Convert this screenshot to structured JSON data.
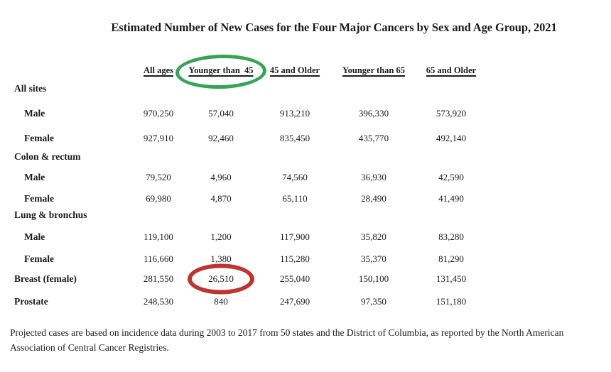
{
  "title": "Estimated Number of New Cases for the Four Major Cancers by Sex and Age Group, 2021",
  "table": {
    "columns": [
      "All ages",
      "Younger than  45",
      "45 and Older",
      "Younger than 65",
      "65 and Older"
    ],
    "rows": [
      {
        "label": "All sites",
        "type": "group",
        "indent": false,
        "values": [
          "",
          "",
          "",
          "",
          ""
        ]
      },
      {
        "label": "Male",
        "type": "sub",
        "indent": true,
        "values": [
          "970,250",
          "57,040",
          "913,210",
          "396,330",
          "573,920"
        ]
      },
      {
        "label": "Female",
        "type": "sub",
        "indent": true,
        "values": [
          "927,910",
          "92,460",
          "835,450",
          "435,770",
          "492,140"
        ]
      },
      {
        "label": "Colon & rectum",
        "type": "group",
        "indent": false,
        "values": [
          "",
          "",
          "",
          "",
          ""
        ]
      },
      {
        "label": "Male",
        "type": "sub",
        "indent": true,
        "values": [
          "79,520",
          "4,960",
          "74,560",
          "36,930",
          "42,590"
        ]
      },
      {
        "label": "Female",
        "type": "sub",
        "indent": true,
        "values": [
          "69,980",
          "4,870",
          "65,110",
          "28,490",
          "41,490"
        ]
      },
      {
        "label": "Lung & bronchus",
        "type": "group",
        "indent": false,
        "values": [
          "",
          "",
          "",
          "",
          ""
        ]
      },
      {
        "label": "Male",
        "type": "sub",
        "indent": true,
        "values": [
          "119,100",
          "1,200",
          "117,900",
          "35,820",
          "83,280"
        ]
      },
      {
        "label": "Female",
        "type": "sub",
        "indent": true,
        "values": [
          "116,660",
          "1,380",
          "115,280",
          "35,370",
          "81,290"
        ]
      },
      {
        "label": "Breast (female)",
        "type": "standalone",
        "indent": false,
        "values": [
          "281,550",
          "26,510",
          "255,040",
          "150,100",
          "131,450"
        ],
        "red_circle_col": 1
      },
      {
        "label": "Prostate",
        "type": "standalone",
        "indent": false,
        "values": [
          "248,530",
          "840",
          "247,690",
          "97,350",
          "151,180"
        ]
      }
    ]
  },
  "annotations": {
    "green_ellipse": {
      "target": "column header: Younger than 45",
      "color": "#35a457"
    },
    "red_ellipse": {
      "target": "cell: Breast (female) / Younger than 45 = 26,510",
      "color": "#c0332f"
    }
  },
  "footnote": "Projected cases are based on incidence data during 2003 to 2017 from 50 states and the District of Columbia, as reported by the North American Association of Central Cancer  Registries.",
  "colors": {
    "background": "#ffffff",
    "text": "#1b1b1b",
    "annotation_green": "#35a457",
    "annotation_red": "#c0332f"
  }
}
